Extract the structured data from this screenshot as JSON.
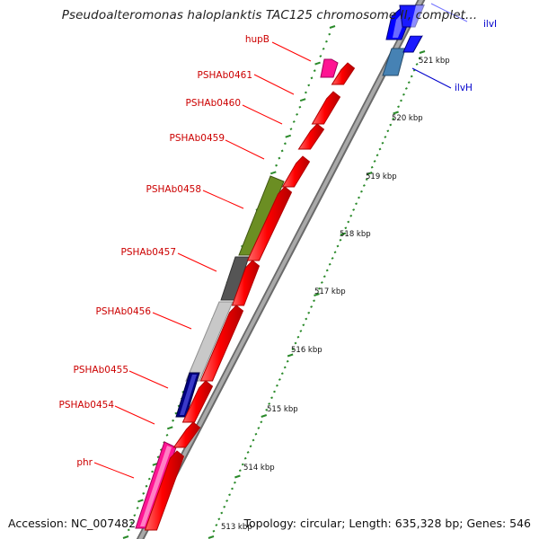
{
  "title": "Pseudoalteromonas haloplanktis TAC125 chromosome II, complet...",
  "footer": {
    "accession": "Accession: NC_007482",
    "summary": "Topology: circular; Length: 635,328 bp; Genes: 546"
  },
  "colors": {
    "label_line": "#ff0000",
    "label_text": "#cc0000",
    "right_label": "#0000cc",
    "tick": "#2a8a2a",
    "backbone": "#888888",
    "gene_red": "#ff0000",
    "gene_pink": "#ff1493",
    "gene_olive": "#6b8e23",
    "gene_dark_gray": "#555555",
    "gene_light_gray": "#c8c8c8",
    "gene_navy": "#000080",
    "gene_blue": "#0000ff",
    "gene_steel": "#4682b4"
  },
  "scale_labels": [
    "521 kbp",
    "520 kbp",
    "519 kbp",
    "518 kbp",
    "517 kbp",
    "516 kbp",
    "515 kbp",
    "514 kbp",
    "513 kbp"
  ],
  "left_labels": [
    "hupB",
    "PSHAb0461",
    "PSHAb0460",
    "PSHAb0459",
    "PSHAb0458",
    "PSHAb0457",
    "PSHAb0456",
    "PSHAb0455",
    "PSHAb0454",
    "phr"
  ],
  "right_labels": [
    "ilvI",
    "ilvH"
  ]
}
